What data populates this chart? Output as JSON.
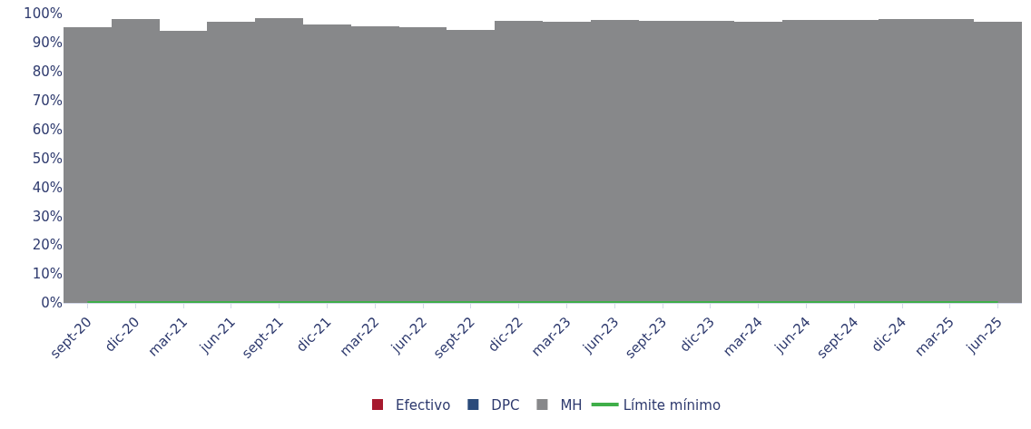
{
  "chart_data": {
    "type": "bar",
    "stacked": true,
    "categories": [
      "sept-20",
      "dic-20",
      "mar-21",
      "jun-21",
      "sept-21",
      "dic-21",
      "mar-22",
      "jun-22",
      "sept-22",
      "dic-22",
      "mar-23",
      "jun-23",
      "sept-23",
      "dic-23",
      "mar-24",
      "jun-24",
      "sept-24",
      "dic-24",
      "mar-25",
      "jun-25"
    ],
    "series": [
      {
        "name": "Efectivo",
        "color": "#a6192e",
        "values": [
          0,
          0,
          0,
          0,
          0,
          0,
          0,
          0,
          0,
          0,
          0,
          0,
          0,
          0,
          0,
          0,
          0,
          0,
          0,
          0
        ]
      },
      {
        "name": "DPC",
        "color": "#2a4a7a",
        "values": [
          0,
          0,
          0,
          0,
          0,
          0,
          0,
          0,
          0,
          0,
          0,
          0,
          0,
          0,
          0,
          0,
          0,
          0,
          0,
          0
        ]
      },
      {
        "name": "MH",
        "color": "#87888a",
        "values": [
          95.4,
          98.2,
          94.2,
          97.2,
          98.5,
          96.3,
          95.7,
          95.4,
          94.5,
          97.6,
          97.2,
          97.9,
          97.6,
          97.4,
          97.2,
          97.7,
          97.9,
          98.2,
          98.0,
          97.1
        ]
      },
      {
        "name": "Límite mínimo",
        "type": "line",
        "color": "#3fae49",
        "line_style": "solid",
        "marker": "none",
        "values": [
          0,
          0,
          0,
          0,
          0,
          0,
          0,
          0,
          0,
          0,
          0,
          0,
          0,
          0,
          0,
          0,
          0,
          0,
          0,
          0
        ]
      }
    ],
    "ylim": [
      0,
      100
    ],
    "yticks": [
      {
        "value": 0,
        "label": "0%"
      },
      {
        "value": 10,
        "label": "10%"
      },
      {
        "value": 20,
        "label": "20%"
      },
      {
        "value": 30,
        "label": "30%"
      },
      {
        "value": 40,
        "label": "40%"
      },
      {
        "value": 50,
        "label": "50%"
      },
      {
        "value": 60,
        "label": "60%"
      },
      {
        "value": 70,
        "label": "70%"
      },
      {
        "value": 80,
        "label": "80%"
      },
      {
        "value": 90,
        "label": "90%"
      },
      {
        "value": 100,
        "label": "100%"
      }
    ],
    "legend": "bottom"
  }
}
